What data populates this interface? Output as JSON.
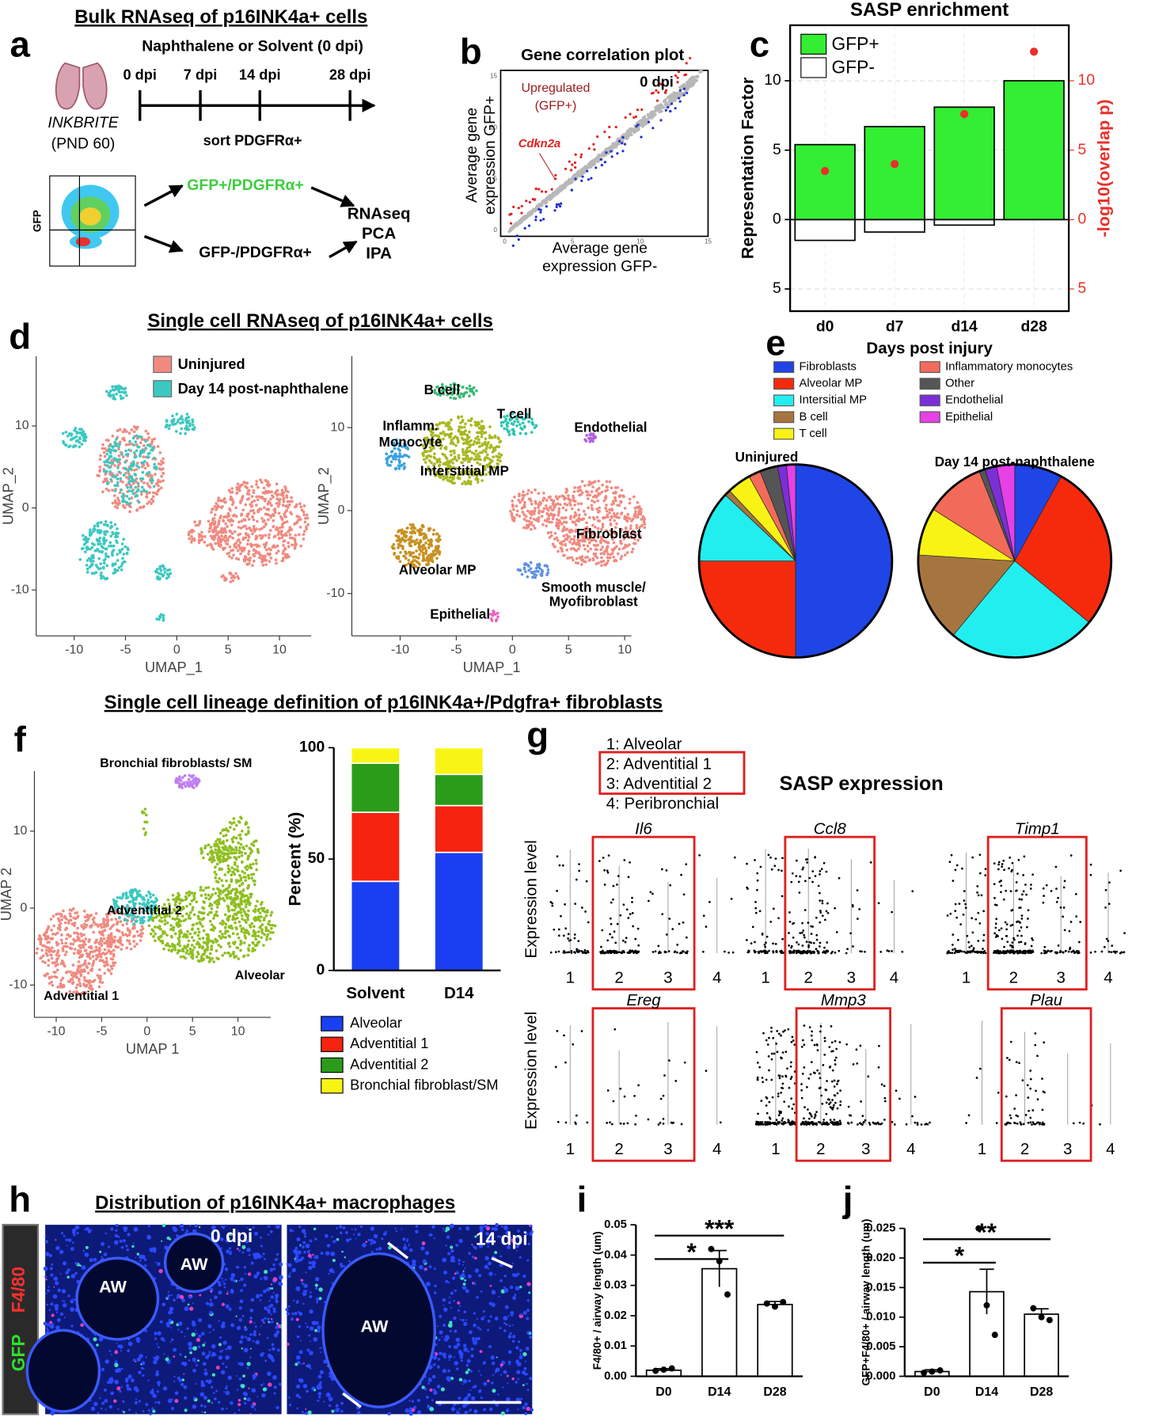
{
  "figure": {
    "letters": [
      "a",
      "b",
      "c",
      "d",
      "e",
      "f",
      "g",
      "h",
      "i",
      "j"
    ],
    "a": {
      "title": "Bulk RNAseq of p16INK4a+ cells",
      "treatment": "Naphthalene or Solvent (0 dpi)",
      "timepoints": [
        "0 dpi",
        "7 dpi",
        "14 dpi",
        "28 dpi"
      ],
      "sort": "sort PDGFRα+",
      "mouse": "INKBRITE",
      "age": "(PND 60)",
      "gate_axis": "GFP",
      "positive": "GFP+/PDGFRα+",
      "negative": "GFP-/PDGFRα+",
      "analyses": [
        "RNAseq",
        "PCA",
        "IPA"
      ]
    },
    "b": {
      "title": "Gene correlation plot",
      "condition": "0 dpi",
      "upregulated": [
        "Upregulated",
        "(GFP+)"
      ],
      "gene": "Cdkn2a",
      "y_label": [
        "Average gene",
        "expression GFP+"
      ],
      "x_label": [
        "Average gene",
        "expression GFP-"
      ],
      "xlim": [
        -0.3,
        15
      ],
      "ylim": [
        -0.6,
        15.6
      ],
      "xticks": [
        0,
        5,
        10,
        15
      ],
      "yticks": [
        0,
        5,
        10,
        15
      ]
    },
    "d": {
      "title": "Single cell RNAseq of p16INK4a+ cells",
      "legend": [
        "Uninjured",
        "Day 14 post-naphthalene"
      ],
      "legend_colors": [
        "#f08a80",
        "#3cc8c0"
      ],
      "clusters": [
        "B cell",
        "T cell",
        "Endothelial",
        "Inflamm.",
        "Monocyte",
        "Interstitial MP",
        "Fibroblast",
        "Alveolar MP",
        "Smooth muscle/",
        "Myofibroblast",
        "Epithelial"
      ],
      "umaps": [
        {
          "x_label": "UMAP_1",
          "y_label": "UMAP_2",
          "xlim": [
            -13.7,
            13.1
          ],
          "ylim": [
            -15.6,
            18.5
          ],
          "xticks": [
            -10,
            -5,
            0,
            5,
            10
          ],
          "yticks": [
            -10,
            0,
            10
          ]
        },
        {
          "x_label": "UMAP_1",
          "y_label": "UMAP_2",
          "xlim": [
            -14.3,
            10.6
          ],
          "ylim": [
            -15.1,
            18.6
          ],
          "xticks": [
            -10,
            -5,
            0,
            5,
            10
          ],
          "yticks": [
            -10,
            0,
            10
          ]
        }
      ]
    },
    "f": {
      "title": "Single cell lineage definition of p16INK4a+/Pdgfra+ fibroblasts",
      "clusters": [
        "Bronchial fibroblasts/ SM",
        "Adventitial 2",
        "Alveolar",
        "Adventitial 1"
      ],
      "umap": {
        "x_label": "UMAP 1",
        "y_label": "UMAP 2",
        "xlim": [
          -12.4,
          13.6
        ],
        "ylim": [
          -14.2,
          17.8
        ],
        "xticks": [
          -10,
          -5,
          0,
          5,
          10
        ],
        "yticks": [
          -10,
          0,
          10
        ]
      }
    },
    "g": {
      "legend": [
        "1: Alveolar",
        "2: Adventitial 1",
        "3: Adventitial 2",
        "4: Peribronchial"
      ],
      "title": "SASP expression",
      "y_label": "Expression level",
      "genes": [
        "Il6",
        "Ccl8",
        "Timp1",
        "Ereg",
        "Mmp3",
        "Plau"
      ],
      "groups": [
        "1",
        "2",
        "3",
        "4"
      ]
    },
    "h": {
      "title": "Distribution of p16INK4a+ macrophages",
      "stains": [
        "GFP",
        "F4/80"
      ],
      "timepoints": [
        "0 dpi",
        "14 dpi"
      ],
      "airway_labels": [
        "AW",
        "AW",
        "AW"
      ]
    }
  },
  "chart_data": [
    {
      "type": "bar",
      "title": "SASP enrichment",
      "x_label": "Days post injury",
      "y_label": "Representation Factor",
      "y2_label": "-log10(overlap p)",
      "categories": [
        "d0",
        "d7",
        "d14",
        "d28"
      ],
      "series": [
        {
          "name": "GFP+",
          "color": "#33ee33",
          "values": [
            5.4,
            6.7,
            8.1,
            10.0
          ]
        },
        {
          "name": "GFP-",
          "color": "#ffffff",
          "values": [
            -1.5,
            -0.9,
            -0.4,
            0
          ]
        },
        {
          "color": "#e8312a",
          "type": "scatter",
          "axis": "y2",
          "values": [
            3.5,
            4.0,
            7.6,
            12.1
          ]
        }
      ],
      "ylim": [
        -6.6,
        14.0
      ],
      "yticks": [
        {
          "value": -5,
          "label": "5"
        },
        0,
        5,
        10
      ],
      "y2lim": [
        -6.6,
        14.0
      ],
      "y2ticks": [
        {
          "value": -5,
          "label": "5"
        },
        0,
        5,
        10
      ],
      "y2_color": "#e8312a",
      "grid": true,
      "legend": "top-left"
    },
    {
      "type": "pie",
      "categories": [
        "Fibroblasts",
        "Alveolar MP",
        "Intersitial MP",
        "B cell",
        "T cell",
        "Inflammatory monocytes",
        "Other",
        "Endothelial",
        "Epithelial"
      ],
      "colors": [
        "#1f45e6",
        "#f52a0c",
        "#22eef0",
        "#a6753f",
        "#f8f315",
        "#f26b5a",
        "#555555",
        "#7b2fd6",
        "#e640e6"
      ],
      "series": [
        {
          "name": "Uninjured",
          "values": [
            50,
            25,
            12,
            1,
            4,
            2,
            3,
            1.5,
            1.5
          ]
        },
        {
          "name": "Day 14 post-naphthalene",
          "values": [
            8,
            28,
            25,
            15,
            8,
            10,
            1,
            2,
            3
          ]
        }
      ]
    },
    {
      "type": "stacked_bar",
      "y_label": "Percent (%)",
      "categories": [
        "Solvent",
        "D14"
      ],
      "series": [
        {
          "name": "Alveolar",
          "color": "#1a3ff2",
          "values": [
            40,
            53
          ]
        },
        {
          "name": "Adventitial 1",
          "color": "#f5230f",
          "values": [
            31,
            21
          ]
        },
        {
          "name": "Adventitial 2",
          "color": "#2a9c1a",
          "values": [
            22,
            14
          ]
        },
        {
          "name": "Bronchial fibroblast/SM",
          "color": "#f8f515",
          "values": [
            7,
            12
          ]
        }
      ],
      "ylim": [
        0,
        100
      ],
      "yticks": [
        0,
        50,
        100
      ]
    },
    {
      "type": "bar",
      "y_label": "F4/80+ / airway length (um)",
      "categories": [
        "D0",
        "D14",
        "D28"
      ],
      "values": [
        0.002,
        0.0355,
        0.0237
      ],
      "errors": [
        0.0005,
        0.006,
        0.001
      ],
      "points": [
        [
          0.0018,
          0.0022,
          0.0026
        ],
        [
          0.042,
          0.038,
          0.027
        ],
        [
          0.024,
          0.023,
          0.0245
        ]
      ],
      "color": "#ffffff",
      "annotations": [
        "*",
        "***"
      ],
      "ylim": [
        0,
        0.05
      ],
      "yticks": [
        {
          "value": 0,
          "label": "0.00"
        },
        0.01,
        0.02,
        0.03,
        0.04,
        0.05
      ]
    },
    {
      "type": "bar",
      "y_label": "GFP+F4/80+ / airway length (um)",
      "categories": [
        "D0",
        "D14",
        "D28"
      ],
      "values": [
        0.0008,
        0.0143,
        0.0105
      ],
      "errors": [
        0.0003,
        0.0038,
        0.0009
      ],
      "points": [
        [
          0.0006,
          0.0008,
          0.001
        ],
        [
          0.025,
          0.012,
          0.007
        ],
        [
          0.0115,
          0.01,
          0.0095
        ]
      ],
      "color": "#ffffff",
      "annotations": [
        "*",
        "**"
      ],
      "ylim": [
        0,
        0.025
      ],
      "yticks": [
        {
          "value": 0,
          "label": "0.000"
        },
        0.005,
        {
          "value": 0.01,
          "label": "0.010"
        },
        0.015,
        {
          "value": 0.02,
          "label": "0.020"
        },
        0.025
      ]
    }
  ]
}
